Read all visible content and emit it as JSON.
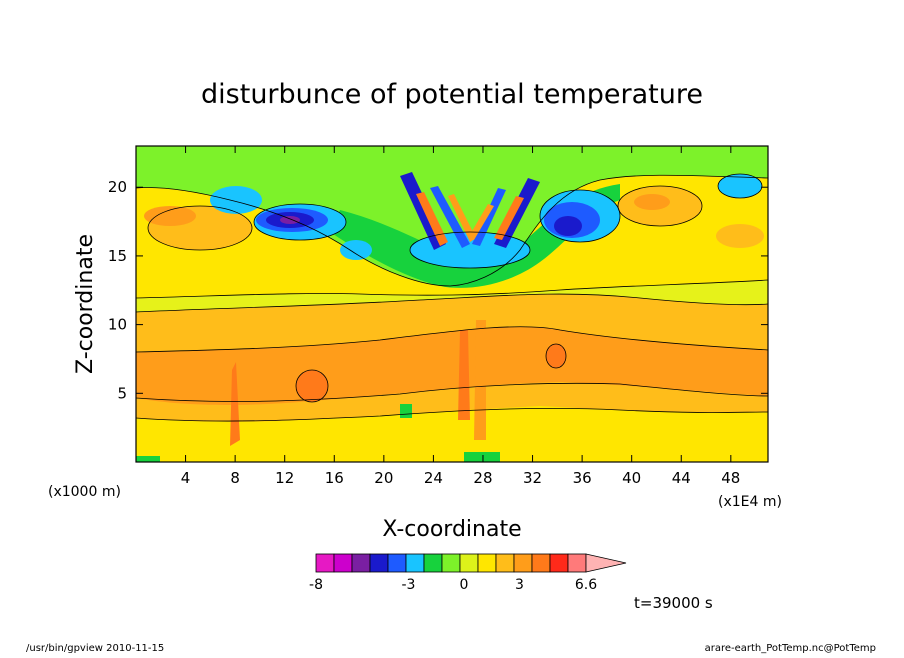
{
  "chart_data": {
    "type": "heatmap",
    "title": "disturbunce of potential temperature",
    "xlabel": "X-coordinate",
    "ylabel": "Z-coordinate",
    "x_unit_left": "(x1000 m)",
    "x_unit_right": "(x1E4 m)",
    "x_ticks": [
      4,
      8,
      12,
      16,
      20,
      24,
      28,
      32,
      36,
      40,
      44,
      48
    ],
    "y_ticks": [
      5,
      10,
      15,
      20
    ],
    "xlim": [
      0,
      51
    ],
    "ylim": [
      0,
      23
    ],
    "grid": false,
    "colorbar": {
      "colors": [
        "#e619c4",
        "#cc00cc",
        "#7a1fa2",
        "#1a1acc",
        "#1e5bff",
        "#19c4ff",
        "#17d23d",
        "#7df22a",
        "#ddf21a",
        "#ffe600",
        "#ffbd1a",
        "#ff9d1a",
        "#ff7a1a",
        "#ff2a1a",
        "#ff7a7a",
        "#ffb3b3"
      ],
      "tick_labels": [
        "-8",
        "-3",
        "0",
        "3",
        "6.6"
      ],
      "tick_values": [
        -8,
        -3,
        0,
        3,
        6.6
      ],
      "vmin": -8,
      "vmax": 6.6
    },
    "time_label": "t=39000 s"
  },
  "footer": {
    "left": "/usr/bin/gpview   2010-11-15",
    "right": "arare-earth_PotTemp.nc@PotTemp"
  }
}
